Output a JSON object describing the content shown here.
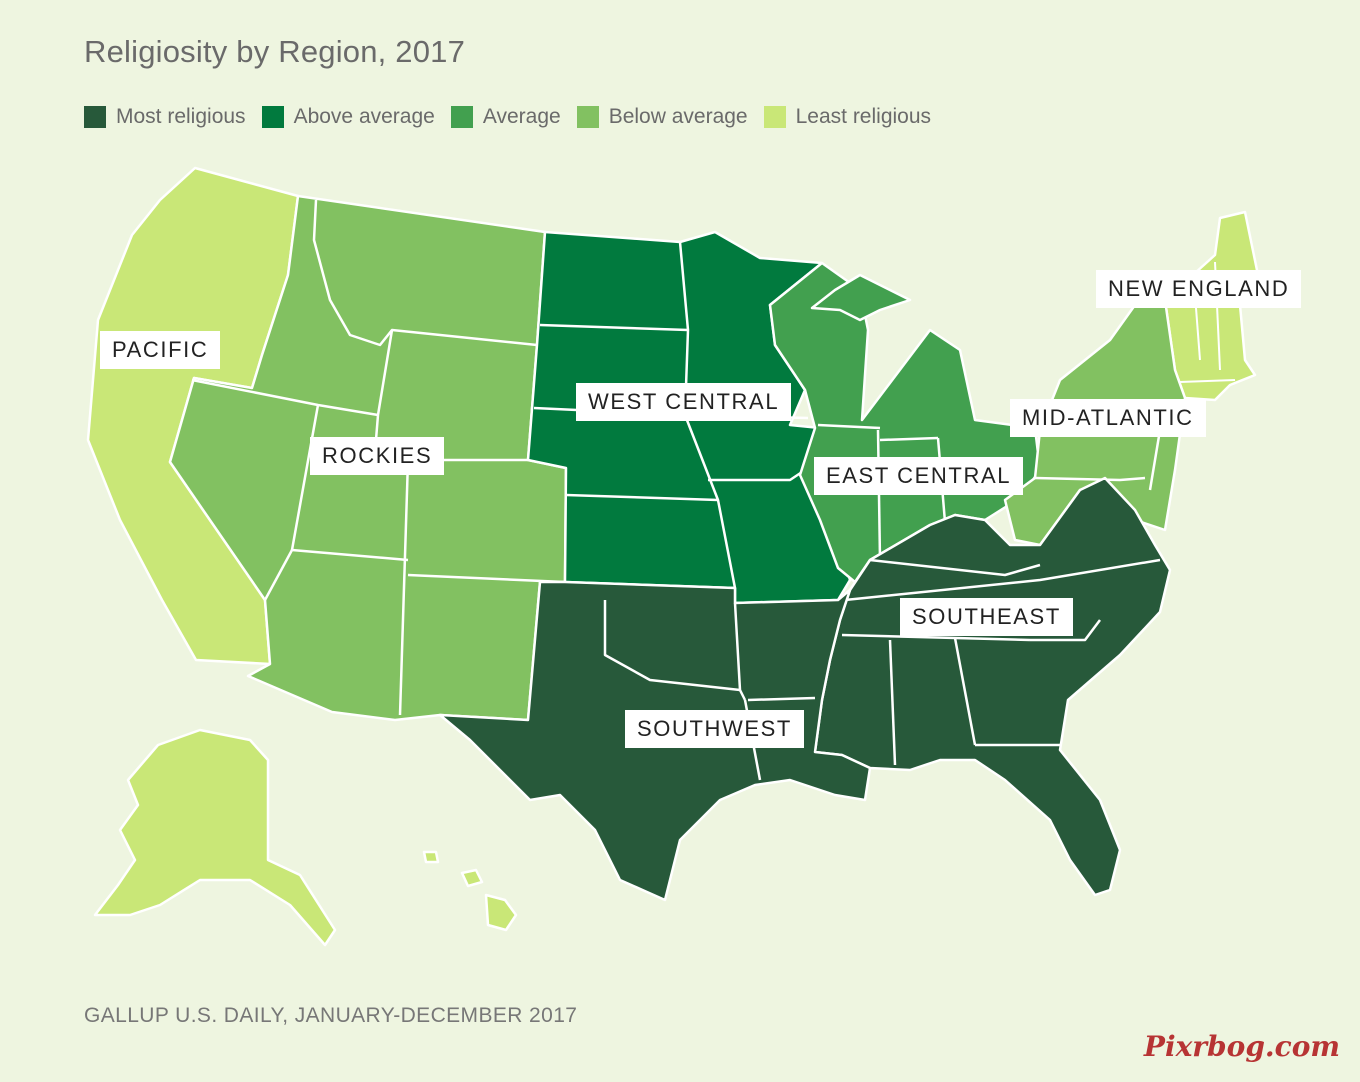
{
  "title": "Religiosity by Region, 2017",
  "legend": [
    {
      "label": "Most religious",
      "color": "#27593a"
    },
    {
      "label": "Above average",
      "color": "#017a3e"
    },
    {
      "label": "Average",
      "color": "#42a04f"
    },
    {
      "label": "Below average",
      "color": "#82c161"
    },
    {
      "label": "Least religious",
      "color": "#c9e777"
    }
  ],
  "regions": {
    "pacific": {
      "label": "PACIFIC",
      "level": "Least religious"
    },
    "rockies": {
      "label": "ROCKIES",
      "level": "Below average"
    },
    "west_central": {
      "label": "WEST CENTRAL",
      "level": "Above average"
    },
    "east_central": {
      "label": "EAST CENTRAL",
      "level": "Average"
    },
    "new_england": {
      "label": "NEW ENGLAND",
      "level": "Least religious"
    },
    "mid_atlantic": {
      "label": "MID-ATLANTIC",
      "level": "Below average"
    },
    "southeast": {
      "label": "SOUTHEAST",
      "level": "Most religious"
    },
    "southwest": {
      "label": "SOUTHWEST",
      "level": "Most religious"
    }
  },
  "source": "GALLUP U.S. DAILY, JANUARY-DECEMBER 2017",
  "watermark": "Pixrbog.com"
}
